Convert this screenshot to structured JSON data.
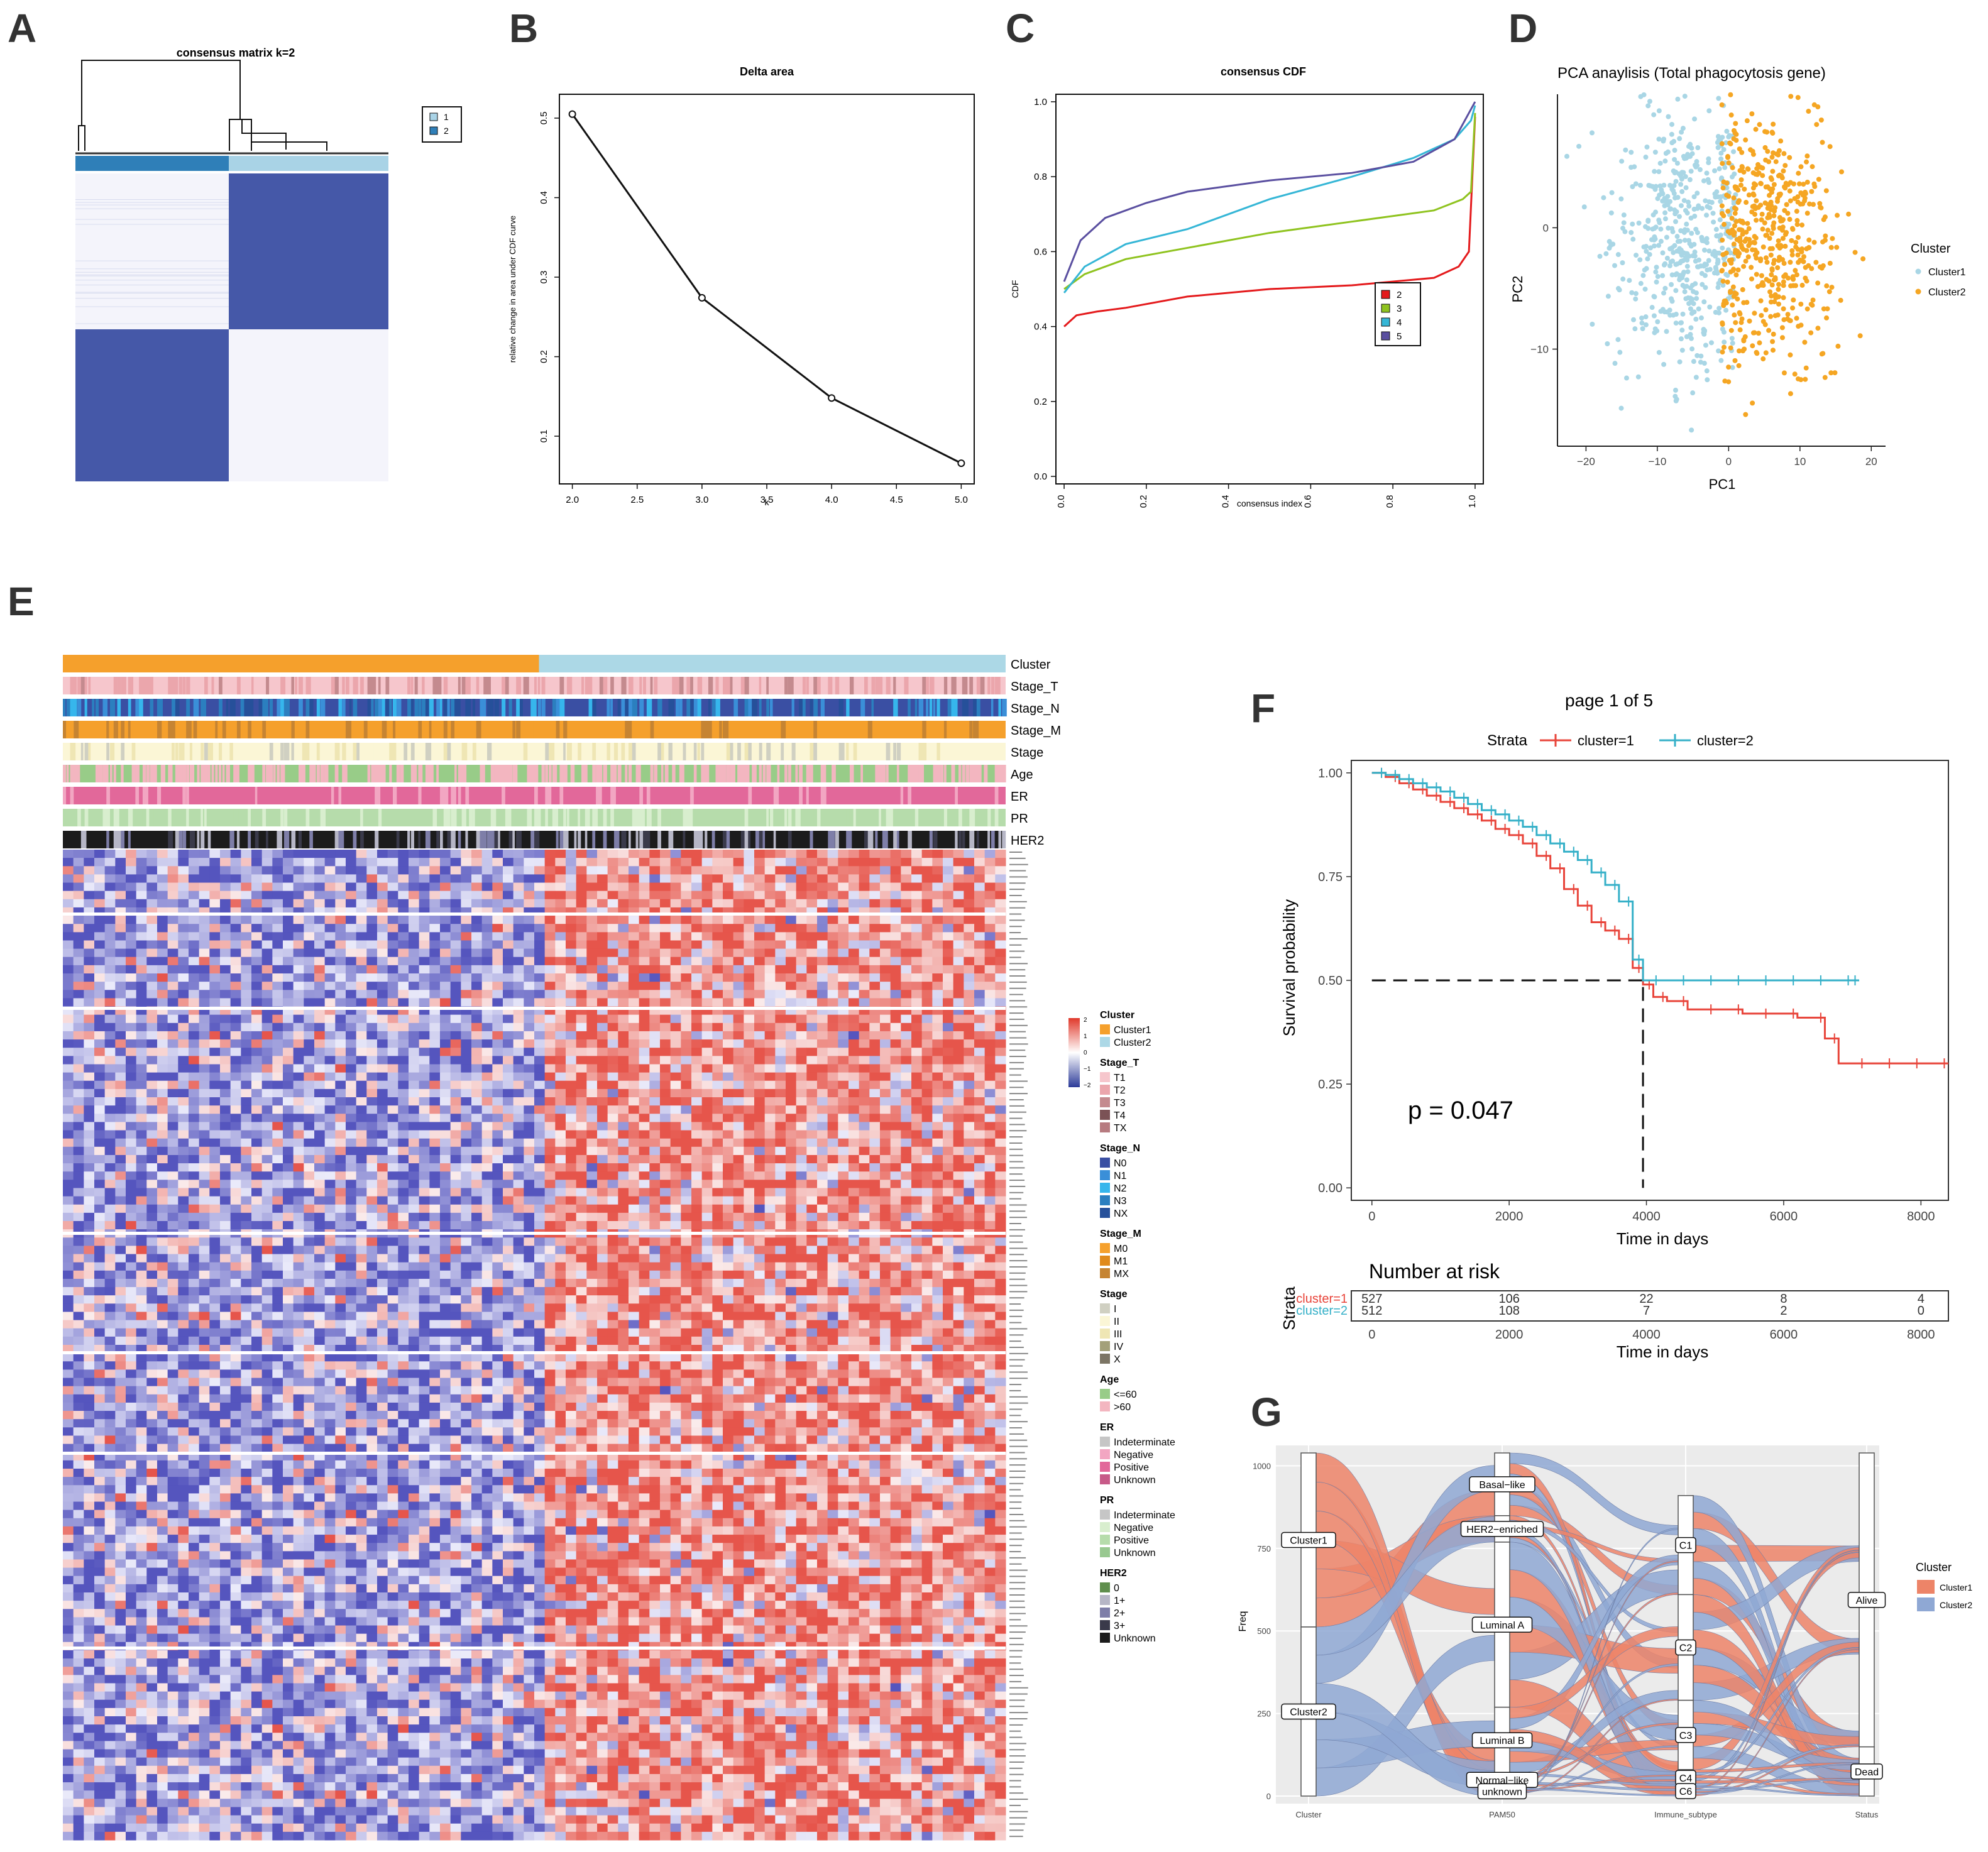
{
  "panel_labels": [
    "A",
    "B",
    "C",
    "D",
    "E",
    "F",
    "G"
  ],
  "chart_data": [
    {
      "panel": "A",
      "type": "heatmap",
      "title": "consensus matrix k=2",
      "legend": [
        "1",
        "2"
      ],
      "colors": {
        "cluster1": "#2f7fb8",
        "cluster2": "#a9d3e6",
        "block": "#4558a8"
      }
    },
    {
      "panel": "B",
      "type": "line",
      "title": "Delta area",
      "xlabel": "k",
      "ylabel": "relative change in area under CDF curve",
      "x": [
        2.0,
        3.0,
        4.0,
        5.0
      ],
      "y": [
        0.505,
        0.274,
        0.148,
        0.066
      ],
      "xlim": [
        1.9,
        5.1
      ],
      "ylim": [
        0.04,
        0.53
      ],
      "xticks": [
        2.0,
        2.5,
        3.0,
        3.5,
        4.0,
        4.5,
        5.0
      ],
      "xtick_labels": [
        "2.0",
        "2.5",
        "3.0",
        "3.5",
        "4.0",
        "4.5",
        "5.0"
      ],
      "yticks": [
        0.1,
        0.2,
        0.3,
        0.4,
        0.5
      ],
      "ytick_labels": [
        "0.1",
        "0.2",
        "0.3",
        "0.4",
        "0.5"
      ]
    },
    {
      "panel": "C",
      "type": "line",
      "title": "consensus CDF",
      "xlabel": "consensus index",
      "ylabel": "CDF",
      "xlim": [
        -0.02,
        1.02
      ],
      "ylim": [
        -0.02,
        1.02
      ],
      "xticks": [
        0.0,
        0.2,
        0.4,
        0.6,
        0.8,
        1.0
      ],
      "xtick_labels": [
        "0.0",
        "0.2",
        "0.4",
        "0.6",
        "0.8",
        "1.0"
      ],
      "yticks": [
        0.0,
        0.2,
        0.4,
        0.6,
        0.8,
        1.0
      ],
      "ytick_labels": [
        "0.0",
        "0.2",
        "0.4",
        "0.6",
        "0.8",
        "1.0"
      ],
      "legend": "inside bottom-right",
      "series": [
        {
          "name": "2",
          "color": "#e41a1c",
          "x": [
            0,
            0.03,
            0.08,
            0.15,
            0.3,
            0.5,
            0.7,
            0.9,
            0.96,
            0.985,
            1.0
          ],
          "y": [
            0.4,
            0.43,
            0.44,
            0.45,
            0.48,
            0.5,
            0.51,
            0.53,
            0.56,
            0.6,
            0.96
          ]
        },
        {
          "name": "3",
          "color": "#8fc31f",
          "x": [
            0,
            0.05,
            0.15,
            0.3,
            0.5,
            0.7,
            0.9,
            0.97,
            0.99,
            1.0
          ],
          "y": [
            0.5,
            0.54,
            0.58,
            0.61,
            0.65,
            0.68,
            0.71,
            0.74,
            0.76,
            0.97
          ]
        },
        {
          "name": "4",
          "color": "#35b6d6",
          "x": [
            0,
            0.05,
            0.15,
            0.3,
            0.5,
            0.7,
            0.85,
            0.95,
            0.99,
            1.0
          ],
          "y": [
            0.49,
            0.56,
            0.62,
            0.66,
            0.74,
            0.8,
            0.85,
            0.9,
            0.95,
            0.99
          ]
        },
        {
          "name": "5",
          "color": "#5a4fa0",
          "x": [
            0,
            0.04,
            0.1,
            0.2,
            0.3,
            0.5,
            0.7,
            0.85,
            0.95,
            1.0
          ],
          "y": [
            0.52,
            0.63,
            0.69,
            0.73,
            0.76,
            0.79,
            0.81,
            0.84,
            0.9,
            1.0
          ]
        }
      ]
    },
    {
      "panel": "D",
      "type": "scatter",
      "title": "PCA anaylisis (Total phagocytosis gene)",
      "xlabel": "PC1",
      "ylabel": "PC2",
      "xlim": [
        -24,
        22
      ],
      "ylim": [
        -18,
        11
      ],
      "xticks": [
        -20,
        -10,
        0,
        10,
        20
      ],
      "xtick_labels": [
        "−20",
        "−10",
        "0",
        "10",
        "20"
      ],
      "yticks": [
        -10,
        0
      ],
      "ytick_labels": [
        "−10",
        "0"
      ],
      "legend_title": "Cluster",
      "series": [
        {
          "name": "Cluster1",
          "color": "#a9d6e5",
          "center": [
            -6,
            -1
          ],
          "spread": [
            5,
            5.5
          ],
          "n": 520
        },
        {
          "name": "Cluster2",
          "color": "#f5a623",
          "center": [
            5,
            -1
          ],
          "spread": [
            5,
            5.5
          ],
          "n": 510
        }
      ]
    },
    {
      "panel": "E",
      "type": "heatmap",
      "annotation_tracks": [
        "Cluster",
        "Stage_T",
        "Stage_N",
        "Stage_M",
        "Stage",
        "Age",
        "ER",
        "PR",
        "HER2"
      ],
      "scale_ticks": [
        "2",
        "1",
        "0",
        "−1",
        "−2"
      ],
      "legend_groups": [
        {
          "title": "Cluster",
          "items": [
            {
              "label": "Cluster1",
              "color": "#f5a02c"
            },
            {
              "label": "Cluster2",
              "color": "#acd8e6"
            }
          ]
        },
        {
          "title": "Stage_T",
          "items": [
            {
              "label": "T1",
              "color": "#f6c6cc"
            },
            {
              "label": "T2",
              "color": "#eba6ac"
            },
            {
              "label": "T3",
              "color": "#c48a8e"
            },
            {
              "label": "T4",
              "color": "#7b5256"
            },
            {
              "label": "TX",
              "color": "#b77b80"
            }
          ]
        },
        {
          "title": "Stage_N",
          "items": [
            {
              "label": "N0",
              "color": "#3a4fa3"
            },
            {
              "label": "N1",
              "color": "#3a8fd8"
            },
            {
              "label": "N2",
              "color": "#36b6ec"
            },
            {
              "label": "N3",
              "color": "#2b7fbf"
            },
            {
              "label": "NX",
              "color": "#26509a"
            }
          ]
        },
        {
          "title": "Stage_M",
          "items": [
            {
              "label": "M0",
              "color": "#f5a02c"
            },
            {
              "label": "M1",
              "color": "#e08a1c"
            },
            {
              "label": "MX",
              "color": "#c68432"
            }
          ]
        },
        {
          "title": "Stage",
          "items": [
            {
              "label": "I",
              "color": "#d0d0c2"
            },
            {
              "label": "II",
              "color": "#fbf6d6"
            },
            {
              "label": "III",
              "color": "#efe6b4"
            },
            {
              "label": "IV",
              "color": "#a3a07a"
            },
            {
              "label": "X",
              "color": "#7c7565"
            }
          ]
        },
        {
          "title": "Age",
          "items": [
            {
              "label": "<=60",
              "color": "#98cc88"
            },
            {
              "label": ">60",
              "color": "#f3b6c0"
            }
          ]
        },
        {
          "title": "ER",
          "items": [
            {
              "label": "Indeterminate",
              "color": "#c6c6c6"
            },
            {
              "label": "Negative",
              "color": "#f2a6c2"
            },
            {
              "label": "Positive",
              "color": "#e2689a"
            },
            {
              "label": "Unknown",
              "color": "#c75a88"
            }
          ]
        },
        {
          "title": "PR",
          "items": [
            {
              "label": "Indeterminate",
              "color": "#c6c6c6"
            },
            {
              "label": "Negative",
              "color": "#d8eece"
            },
            {
              "label": "Positive",
              "color": "#b6dcab"
            },
            {
              "label": "Unknown",
              "color": "#98c890"
            }
          ]
        },
        {
          "title": "HER2",
          "items": [
            {
              "label": "0",
              "color": "#5f8e4d"
            },
            {
              "label": "1+",
              "color": "#b6b6c6"
            },
            {
              "label": "2+",
              "color": "#7e7ea8"
            },
            {
              "label": "3+",
              "color": "#3a3a4a"
            },
            {
              "label": "Unknown",
              "color": "#1c1c1c"
            }
          ]
        }
      ]
    },
    {
      "panel": "F",
      "type": "line",
      "title": "page 1 of 5",
      "legend_title": "Strata",
      "xlabel": "Time in days",
      "ylabel": "Survival probability",
      "annotation": "p = 0.047",
      "xlim": [
        -300,
        8400
      ],
      "ylim": [
        -0.03,
        1.03
      ],
      "xticks": [
        0,
        2000,
        4000,
        6000,
        8000
      ],
      "xtick_labels": [
        "0",
        "2000",
        "4000",
        "6000",
        "8000"
      ],
      "yticks": [
        0.0,
        0.25,
        0.5,
        0.75,
        1.0
      ],
      "ytick_labels": [
        "0.00",
        "0.25",
        "0.50",
        "0.75",
        "1.00"
      ],
      "median_line": {
        "x": 3950,
        "y": 0.5
      },
      "series": [
        {
          "name": "cluster=1",
          "color": "#e8443a",
          "x": [
            0,
            200,
            400,
            600,
            800,
            1000,
            1200,
            1400,
            1600,
            1800,
            2000,
            2200,
            2400,
            2600,
            2800,
            3000,
            3200,
            3400,
            3600,
            3800,
            3950,
            4100,
            4300,
            4600,
            5000,
            5400,
            5800,
            6200,
            6600,
            6800,
            7200,
            7600,
            8000,
            8400
          ],
          "y": [
            1.0,
            0.99,
            0.975,
            0.96,
            0.945,
            0.93,
            0.915,
            0.9,
            0.885,
            0.865,
            0.85,
            0.83,
            0.8,
            0.77,
            0.72,
            0.68,
            0.64,
            0.62,
            0.6,
            0.53,
            0.49,
            0.46,
            0.45,
            0.43,
            0.43,
            0.42,
            0.42,
            0.41,
            0.36,
            0.3,
            0.3,
            0.3,
            0.3,
            0.3
          ]
        },
        {
          "name": "cluster=2",
          "color": "#35b0c8",
          "x": [
            0,
            200,
            400,
            600,
            800,
            1000,
            1200,
            1400,
            1600,
            1800,
            2000,
            2200,
            2400,
            2600,
            2800,
            3000,
            3200,
            3400,
            3600,
            3800,
            3950,
            4200,
            4600,
            5000,
            5400,
            5800,
            6200,
            6600,
            7000,
            7100
          ],
          "y": [
            1.0,
            0.995,
            0.985,
            0.975,
            0.965,
            0.955,
            0.94,
            0.925,
            0.91,
            0.9,
            0.885,
            0.87,
            0.85,
            0.83,
            0.81,
            0.79,
            0.76,
            0.73,
            0.69,
            0.55,
            0.5,
            0.5,
            0.5,
            0.5,
            0.5,
            0.5,
            0.5,
            0.5,
            0.5,
            0.5
          ]
        }
      ],
      "risk_table": {
        "title": "Number at risk",
        "ylabel": "Strata",
        "xlabel": "Time in days",
        "times": [
          0,
          2000,
          4000,
          6000,
          8000
        ],
        "rows": [
          {
            "label": "cluster=1",
            "values": [
              "527",
              "106",
              "22",
              "8",
              "4"
            ]
          },
          {
            "label": "cluster=2",
            "values": [
              "512",
              "108",
              "7",
              "2",
              "0"
            ]
          }
        ]
      }
    },
    {
      "panel": "G",
      "type": "other",
      "subtype": "alluvial",
      "ylabel": "Freq",
      "yticks": [
        0,
        250,
        500,
        750,
        1000
      ],
      "ytick_labels": [
        "0",
        "250",
        "500",
        "750",
        "1000"
      ],
      "ylim": [
        0,
        1039
      ],
      "axes": [
        "Cluster",
        "PAM50",
        "Immune_subtype",
        "Status"
      ],
      "legend_title": "Cluster",
      "legend": [
        {
          "label": "Cluster1",
          "color": "#ed8468"
        },
        {
          "label": "Cluster2",
          "color": "#8fa8d4"
        }
      ],
      "strata": [
        {
          "axis": "Cluster",
          "label": "Cluster1",
          "value": 527
        },
        {
          "axis": "Cluster",
          "label": "Cluster2",
          "value": 512
        },
        {
          "axis": "PAM50",
          "label": "Basal−like",
          "value": 190
        },
        {
          "axis": "PAM50",
          "label": "HER2−enriched",
          "value": 80
        },
        {
          "axis": "PAM50",
          "label": "Luminal A",
          "value": 500
        },
        {
          "axis": "PAM50",
          "label": "Luminal B",
          "value": 200
        },
        {
          "axis": "PAM50",
          "label": "Normal−like",
          "value": 40
        },
        {
          "axis": "PAM50",
          "label": "unknown",
          "value": 29
        },
        {
          "axis": "Immune_subtype",
          "label": "C1",
          "value": 300
        },
        {
          "axis": "Immune_subtype",
          "label": "C2",
          "value": 320
        },
        {
          "axis": "Immune_subtype",
          "label": "C3",
          "value": 210
        },
        {
          "axis": "Immune_subtype",
          "label": "C4",
          "value": 50
        },
        {
          "axis": "Immune_subtype",
          "label": "C6",
          "value": 30
        },
        {
          "axis": "Status",
          "label": "Alive",
          "value": 890
        },
        {
          "axis": "Status",
          "label": "Dead",
          "value": 149
        }
      ]
    }
  ]
}
